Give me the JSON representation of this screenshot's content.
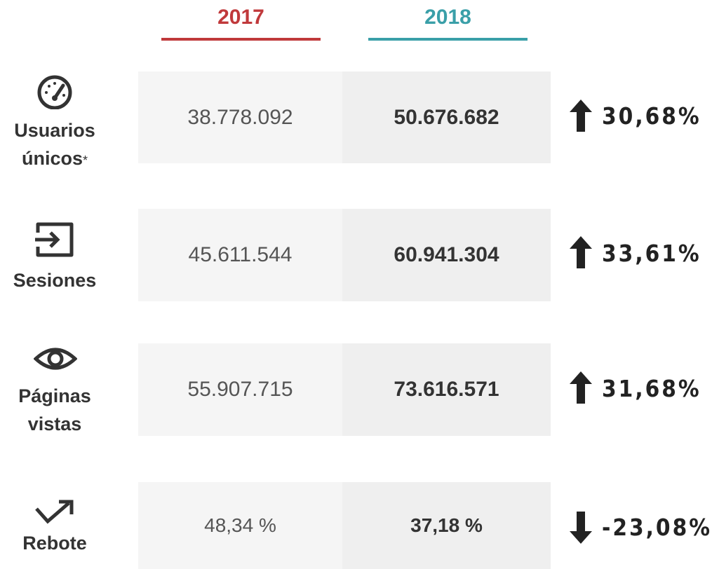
{
  "header": {
    "year_2017": "2017",
    "year_2018": "2018"
  },
  "rows": [
    {
      "label_lines": [
        "Usuarios",
        "únicos"
      ],
      "note": "*",
      "value_2017": "38.778.092",
      "value_2018": "50.676.682",
      "change": "30,68%"
    },
    {
      "label_lines": [
        "Sesiones"
      ],
      "value_2017": "45.611.544",
      "value_2018": "60.941.304",
      "change": "33,61%"
    },
    {
      "label_lines": [
        "Páginas",
        "vistas"
      ],
      "value_2017": "55.907.715",
      "value_2018": "73.616.571",
      "change": "31,68%"
    },
    {
      "label_lines": [
        "Rebote"
      ],
      "value_2017": "48,34 %",
      "value_2018": "37,18 %",
      "change": "-23,08%"
    }
  ]
}
